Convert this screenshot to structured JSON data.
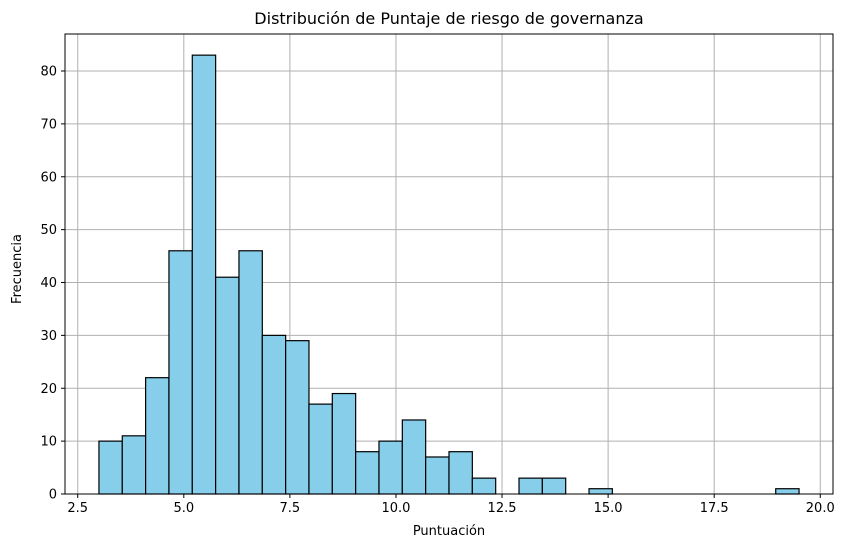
{
  "chart_data": {
    "type": "bar",
    "title": "Distribución de Puntaje de riesgo de governanza",
    "xlabel": "Puntuación",
    "ylabel": "Frecuencia",
    "xlim": [
      2.2,
      20.3
    ],
    "ylim": [
      0,
      87
    ],
    "xticks": [
      "2.5",
      "5.0",
      "7.5",
      "10.0",
      "12.5",
      "15.0",
      "17.5",
      "20.0"
    ],
    "yticks": [
      "0",
      "10",
      "20",
      "30",
      "40",
      "50",
      "60",
      "70",
      "80"
    ],
    "grid": true,
    "bar_color": "#87ceeb",
    "edge_color": "#000000",
    "bins": [
      {
        "start": 3.0,
        "end": 3.55,
        "count": 10
      },
      {
        "start": 3.55,
        "end": 4.1,
        "count": 11
      },
      {
        "start": 4.1,
        "end": 4.65,
        "count": 22
      },
      {
        "start": 4.65,
        "end": 5.2,
        "count": 46
      },
      {
        "start": 5.2,
        "end": 5.75,
        "count": 83
      },
      {
        "start": 5.75,
        "end": 6.3,
        "count": 41
      },
      {
        "start": 6.3,
        "end": 6.85,
        "count": 46
      },
      {
        "start": 6.85,
        "end": 7.4,
        "count": 30
      },
      {
        "start": 7.4,
        "end": 7.95,
        "count": 29
      },
      {
        "start": 7.95,
        "end": 8.5,
        "count": 17
      },
      {
        "start": 8.5,
        "end": 9.05,
        "count": 19
      },
      {
        "start": 9.05,
        "end": 9.6,
        "count": 8
      },
      {
        "start": 9.6,
        "end": 10.15,
        "count": 10
      },
      {
        "start": 10.15,
        "end": 10.7,
        "count": 14
      },
      {
        "start": 10.7,
        "end": 11.25,
        "count": 7
      },
      {
        "start": 11.25,
        "end": 11.8,
        "count": 8
      },
      {
        "start": 11.8,
        "end": 12.35,
        "count": 3
      },
      {
        "start": 12.35,
        "end": 12.9,
        "count": 0
      },
      {
        "start": 12.9,
        "end": 13.45,
        "count": 3
      },
      {
        "start": 13.45,
        "end": 14.0,
        "count": 3
      },
      {
        "start": 14.0,
        "end": 14.55,
        "count": 0
      },
      {
        "start": 14.55,
        "end": 15.1,
        "count": 1
      },
      {
        "start": 15.1,
        "end": 15.65,
        "count": 0
      },
      {
        "start": 15.65,
        "end": 16.2,
        "count": 0
      },
      {
        "start": 16.2,
        "end": 16.75,
        "count": 0
      },
      {
        "start": 16.75,
        "end": 17.3,
        "count": 0
      },
      {
        "start": 17.3,
        "end": 17.85,
        "count": 0
      },
      {
        "start": 17.85,
        "end": 18.4,
        "count": 0
      },
      {
        "start": 18.4,
        "end": 18.95,
        "count": 0
      },
      {
        "start": 18.95,
        "end": 19.5,
        "count": 1
      }
    ]
  }
}
